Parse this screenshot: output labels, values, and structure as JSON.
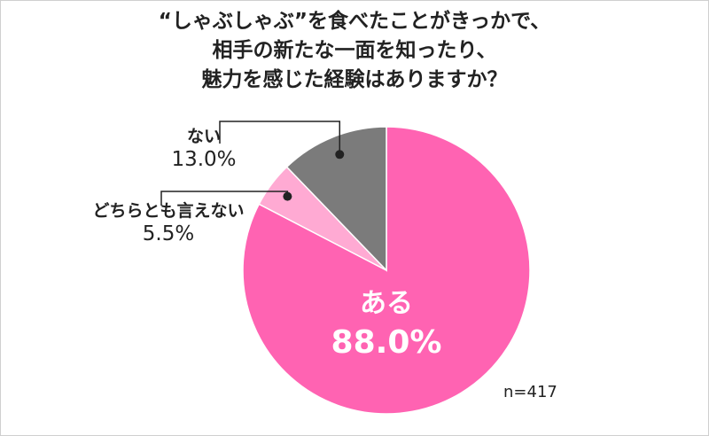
{
  "chart_data": {
    "type": "pie",
    "title_lines": [
      "“しゃぶしゃぶ”を食べたことがきっかで、",
      "相手の新たな一面を知ったり、",
      "魅力を感じた経験はありますか？"
    ],
    "slices": [
      {
        "label": "ある",
        "value": 88.0,
        "display": "88.0%",
        "color": "#ff63b2"
      },
      {
        "label": "どちらとも言えない",
        "value": 5.5,
        "display": "5.5%",
        "color": "#ffaad3"
      },
      {
        "label": "ない",
        "value": 13.0,
        "display": "13.0%",
        "color": "#7b7b7b"
      }
    ],
    "note": "n=417"
  }
}
